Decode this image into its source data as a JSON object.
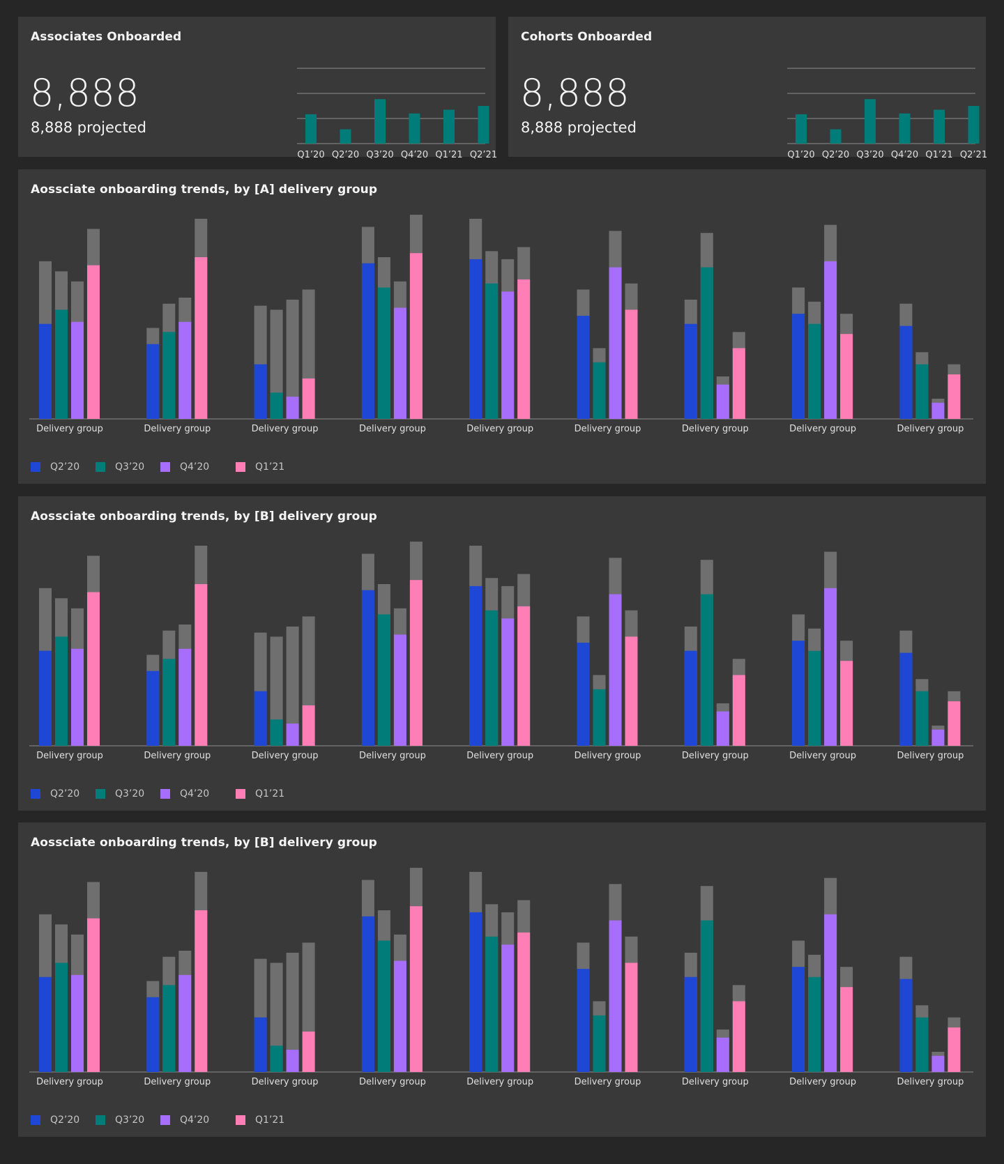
{
  "colors": {
    "background": "#262626",
    "card": "#393939",
    "teal": "#007d79",
    "blue": "#1d47d4",
    "purple": "#a66efa",
    "pink": "#ff7eb6",
    "projected": "#6f6f6f",
    "axis": "#8d8d8d"
  },
  "kpis": [
    {
      "title": "Associates Onboarded",
      "value": "8,888",
      "subtext": "8,888 projected",
      "chart_ref": 0
    },
    {
      "title": "Cohorts Onboarded",
      "value": "8,888",
      "subtext": "8,888 projected",
      "chart_ref": 1
    }
  ],
  "trends": [
    {
      "title": "Aossciate onboarding trends, by [A] delivery group"
    },
    {
      "title": "Aossciate onboarding trends, by [B] delivery group"
    },
    {
      "title": "Aossciate onboarding trends, by [B] delivery group"
    }
  ],
  "legend": [
    {
      "label": "Q2’20",
      "color": "#1d47d4"
    },
    {
      "label": "Q3’20",
      "color": "#007d79"
    },
    {
      "label": "Q4’20",
      "color": "#a66efa"
    },
    {
      "label": "Q1’21",
      "color": "#ff7eb6"
    }
  ],
  "chart_data": [
    {
      "type": "bar",
      "categories": [
        "Q1’20",
        "Q2’20",
        "Q3’20",
        "Q4’20",
        "Q1’21",
        "Q2’21"
      ],
      "values": [
        39,
        19,
        59,
        40,
        45,
        50
      ],
      "ylim": [
        0,
        100
      ],
      "grid": true
    },
    {
      "type": "bar",
      "categories": [
        "Q1’20",
        "Q2’20",
        "Q3’20",
        "Q4’20",
        "Q1’21",
        "Q2’21"
      ],
      "values": [
        39,
        19,
        59,
        40,
        45,
        50
      ],
      "ylim": [
        0,
        100
      ],
      "grid": true
    },
    {
      "type": "bar",
      "stacked_projection": true,
      "categories": [
        "Delivery group",
        "Delivery group",
        "Delivery group",
        "Delivery group",
        "Delivery group",
        "Delivery group",
        "Delivery group",
        "Delivery group",
        "Delivery group"
      ],
      "ylim": [
        0,
        100
      ],
      "series": [
        {
          "name": "Q2’20",
          "values": [
            47,
            37,
            27,
            77,
            79,
            51,
            47,
            52,
            46
          ],
          "projected": [
            78,
            45,
            56,
            95,
            99,
            64,
            59,
            65,
            57
          ]
        },
        {
          "name": "Q3’20",
          "values": [
            54,
            43,
            13,
            65,
            67,
            28,
            75,
            47,
            27
          ],
          "projected": [
            73,
            57,
            54,
            80,
            83,
            35,
            92,
            58,
            33
          ]
        },
        {
          "name": "Q4’20",
          "values": [
            48,
            48,
            11,
            55,
            63,
            75,
            17,
            78,
            8
          ],
          "projected": [
            68,
            60,
            59,
            68,
            79,
            93,
            21,
            96,
            10
          ]
        },
        {
          "name": "Q1’21",
          "values": [
            76,
            80,
            20,
            82,
            69,
            54,
            35,
            42,
            22
          ],
          "projected": [
            94,
            99,
            64,
            101,
            85,
            67,
            43,
            52,
            27
          ]
        }
      ]
    },
    {
      "type": "bar",
      "stacked_projection": true,
      "categories": [
        "Delivery group",
        "Delivery group",
        "Delivery group",
        "Delivery group",
        "Delivery group",
        "Delivery group",
        "Delivery group",
        "Delivery group",
        "Delivery group"
      ],
      "ylim": [
        0,
        100
      ],
      "series": [
        {
          "name": "Q2’20",
          "values": [
            47,
            37,
            27,
            77,
            79,
            51,
            47,
            52,
            46
          ],
          "projected": [
            78,
            45,
            56,
            95,
            99,
            64,
            59,
            65,
            57
          ]
        },
        {
          "name": "Q3’20",
          "values": [
            54,
            43,
            13,
            65,
            67,
            28,
            75,
            47,
            27
          ],
          "projected": [
            73,
            57,
            54,
            80,
            83,
            35,
            92,
            58,
            33
          ]
        },
        {
          "name": "Q4’20",
          "values": [
            48,
            48,
            11,
            55,
            63,
            75,
            17,
            78,
            8
          ],
          "projected": [
            68,
            60,
            59,
            68,
            79,
            93,
            21,
            96,
            10
          ]
        },
        {
          "name": "Q1’21",
          "values": [
            76,
            80,
            20,
            82,
            69,
            54,
            35,
            42,
            22
          ],
          "projected": [
            94,
            99,
            64,
            101,
            85,
            67,
            43,
            52,
            27
          ]
        }
      ]
    },
    {
      "type": "bar",
      "stacked_projection": true,
      "categories": [
        "Delivery group",
        "Delivery group",
        "Delivery group",
        "Delivery group",
        "Delivery group",
        "Delivery group",
        "Delivery group",
        "Delivery group",
        "Delivery group"
      ],
      "ylim": [
        0,
        100
      ],
      "series": [
        {
          "name": "Q2’20",
          "values": [
            47,
            37,
            27,
            77,
            79,
            51,
            47,
            52,
            46
          ],
          "projected": [
            78,
            45,
            56,
            95,
            99,
            64,
            59,
            65,
            57
          ]
        },
        {
          "name": "Q3’20",
          "values": [
            54,
            43,
            13,
            65,
            67,
            28,
            75,
            47,
            27
          ],
          "projected": [
            73,
            57,
            54,
            80,
            83,
            35,
            92,
            58,
            33
          ]
        },
        {
          "name": "Q4’20",
          "values": [
            48,
            48,
            11,
            55,
            63,
            75,
            17,
            78,
            8
          ],
          "projected": [
            68,
            60,
            59,
            68,
            79,
            93,
            21,
            96,
            10
          ]
        },
        {
          "name": "Q1’21",
          "values": [
            76,
            80,
            20,
            82,
            69,
            54,
            35,
            42,
            22
          ],
          "projected": [
            94,
            99,
            64,
            101,
            85,
            67,
            43,
            52,
            27
          ]
        }
      ]
    }
  ]
}
